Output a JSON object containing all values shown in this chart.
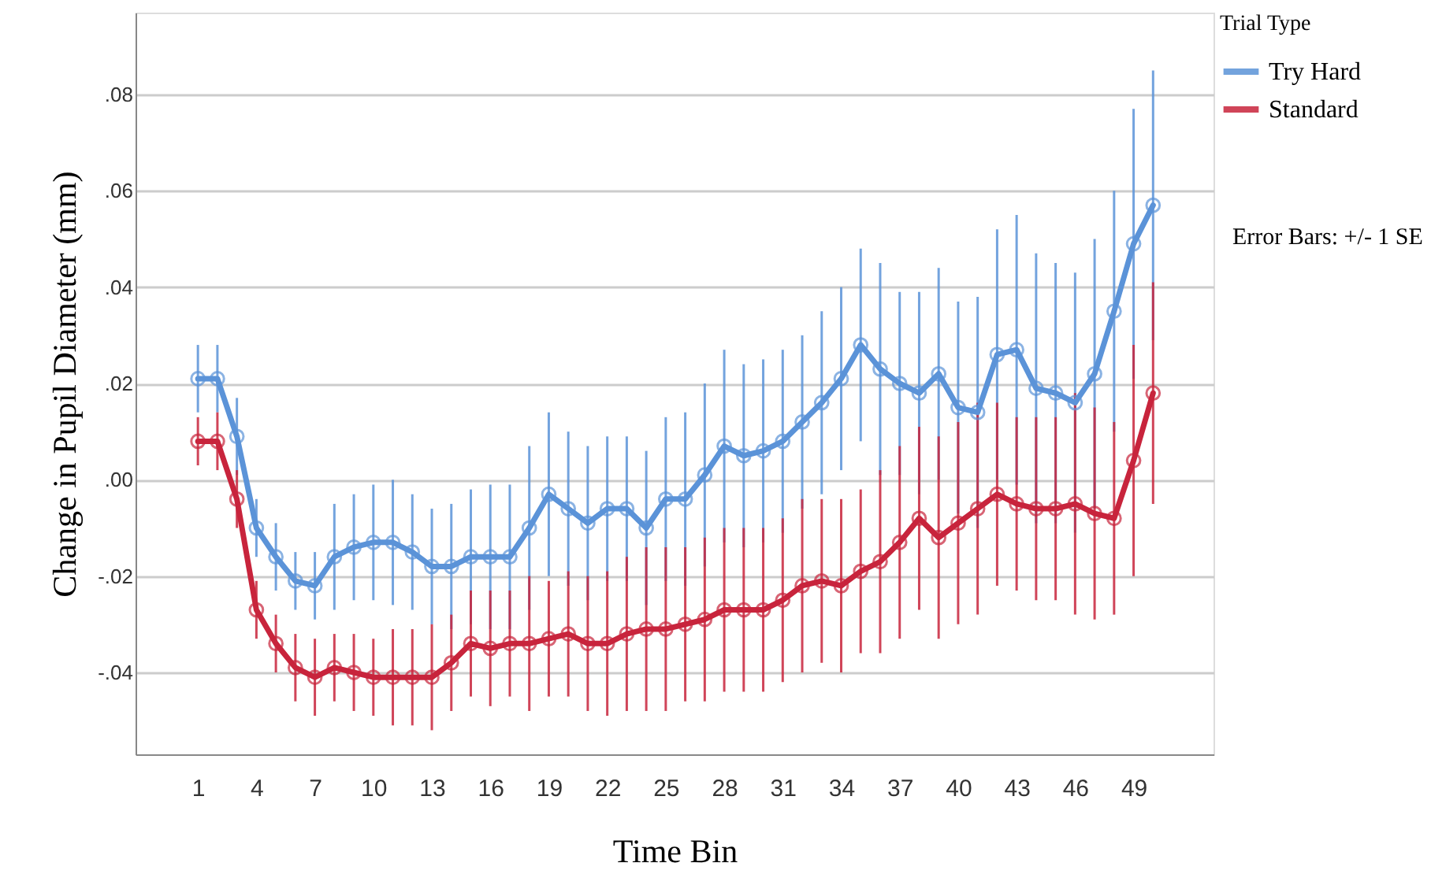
{
  "chart_data": {
    "type": "line",
    "xlabel": "Time Bin",
    "ylabel": "Change in Pupil Diameter (mm)",
    "legend_title": "Trial Type",
    "annotations": [
      "Error Bars: +/- 1 SE"
    ],
    "x": [
      1,
      2,
      3,
      4,
      5,
      6,
      7,
      8,
      9,
      10,
      11,
      12,
      13,
      14,
      15,
      16,
      17,
      18,
      19,
      20,
      21,
      22,
      23,
      24,
      25,
      26,
      27,
      28,
      29,
      30,
      31,
      32,
      33,
      34,
      35,
      36,
      37,
      38,
      39,
      40,
      41,
      42,
      43,
      44,
      45,
      46,
      47,
      48,
      49,
      50
    ],
    "xlim": [
      -2.2,
      53.1
    ],
    "xticks": [
      1,
      4,
      7,
      10,
      13,
      16,
      19,
      22,
      25,
      28,
      31,
      34,
      37,
      40,
      43,
      46,
      49
    ],
    "ylim": [
      -0.057,
      0.097
    ],
    "yticks": [
      {
        "value": -0.04,
        "label": "-.04"
      },
      {
        "value": -0.02,
        "label": "-.02"
      },
      {
        "value": 0,
        "label": ".00"
      },
      {
        "value": 0.02,
        "label": ".02"
      },
      {
        "value": 0.04,
        "label": ".04"
      },
      {
        "value": 0.06,
        "label": ".06"
      },
      {
        "value": 0.08,
        "label": ".08"
      }
    ],
    "grid": "y",
    "legend": "top right",
    "marker": "circle",
    "line_style": "solid",
    "series": [
      {
        "name": "Try Hard",
        "color": "#5b93d8",
        "values": [
          0.021,
          0.021,
          0.009,
          -0.01,
          -0.016,
          -0.021,
          -0.022,
          -0.016,
          -0.014,
          -0.013,
          -0.013,
          -0.015,
          -0.018,
          -0.018,
          -0.016,
          -0.016,
          -0.016,
          -0.01,
          -0.003,
          -0.006,
          -0.009,
          -0.006,
          -0.006,
          -0.01,
          -0.004,
          -0.004,
          0.001,
          0.007,
          0.005,
          0.006,
          0.008,
          0.012,
          0.016,
          0.021,
          0.028,
          0.023,
          0.02,
          0.018,
          0.022,
          0.015,
          0.014,
          0.026,
          0.027,
          0.019,
          0.018,
          0.016,
          0.022,
          0.035,
          0.049,
          0.057
        ],
        "errors": [
          0.007,
          0.007,
          0.008,
          0.006,
          0.007,
          0.006,
          0.007,
          0.011,
          0.011,
          0.012,
          0.013,
          0.012,
          0.012,
          0.013,
          0.014,
          0.015,
          0.015,
          0.017,
          0.017,
          0.016,
          0.016,
          0.015,
          0.015,
          0.016,
          0.017,
          0.018,
          0.019,
          0.02,
          0.019,
          0.019,
          0.019,
          0.018,
          0.019,
          0.019,
          0.02,
          0.022,
          0.019,
          0.021,
          0.022,
          0.022,
          0.024,
          0.026,
          0.028,
          0.028,
          0.027,
          0.027,
          0.028,
          0.025,
          0.028,
          0.028
        ]
      },
      {
        "name": "Standard",
        "color": "#c8243c",
        "values": [
          0.008,
          0.008,
          -0.004,
          -0.027,
          -0.034,
          -0.039,
          -0.041,
          -0.039,
          -0.04,
          -0.041,
          -0.041,
          -0.041,
          -0.041,
          -0.038,
          -0.034,
          -0.035,
          -0.034,
          -0.034,
          -0.033,
          -0.032,
          -0.034,
          -0.034,
          -0.032,
          -0.031,
          -0.031,
          -0.03,
          -0.029,
          -0.027,
          -0.027,
          -0.027,
          -0.025,
          -0.022,
          -0.021,
          -0.022,
          -0.019,
          -0.017,
          -0.013,
          -0.008,
          -0.012,
          -0.009,
          -0.006,
          -0.003,
          -0.005,
          -0.006,
          -0.006,
          -0.005,
          -0.007,
          -0.008,
          0.004,
          0.018
        ],
        "errors": [
          0.005,
          0.006,
          0.006,
          0.006,
          0.006,
          0.007,
          0.008,
          0.007,
          0.008,
          0.008,
          0.01,
          0.01,
          0.011,
          0.01,
          0.011,
          0.012,
          0.011,
          0.014,
          0.012,
          0.013,
          0.014,
          0.015,
          0.016,
          0.017,
          0.017,
          0.016,
          0.017,
          0.017,
          0.017,
          0.017,
          0.017,
          0.018,
          0.017,
          0.018,
          0.017,
          0.019,
          0.02,
          0.019,
          0.021,
          0.021,
          0.022,
          0.019,
          0.018,
          0.019,
          0.019,
          0.023,
          0.022,
          0.02,
          0.024,
          0.023
        ]
      }
    ]
  }
}
